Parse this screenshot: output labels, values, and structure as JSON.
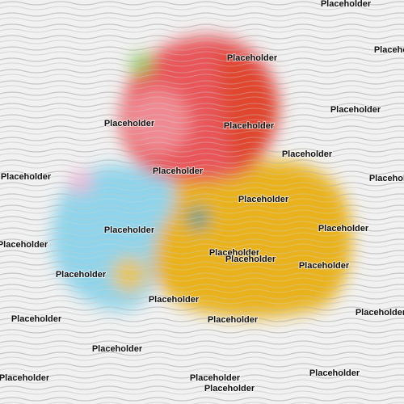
{
  "labels": [
    "Placeholder",
    "Placeholder",
    "Placeholder",
    "Placeholder",
    "Placeholder",
    "Placeholder",
    "Placeholder",
    "Placeholder",
    "Placeholder",
    "Placeholder",
    "Placeholder",
    "Placeholder",
    "Placeholder",
    "Placeholder",
    "Placeholder",
    "Placeholder",
    "Placeholder",
    "Placeholder",
    "Placeholder",
    "Placeholder",
    "Placeholder",
    "Placeholder",
    "Placeholder",
    "Placeholder",
    "Placeholder",
    "Placeholder",
    "Placeholder"
  ]
}
